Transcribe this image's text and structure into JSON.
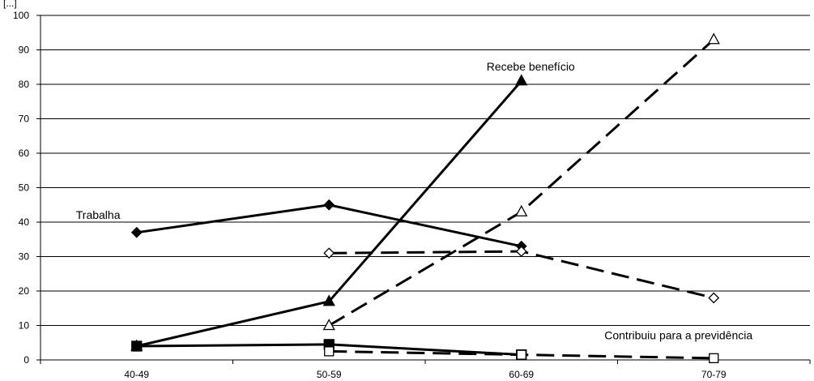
{
  "chart_data": {
    "type": "line",
    "title": "",
    "ylabel": "[...]",
    "xlabel": "",
    "categories": [
      "40-49",
      "50-59",
      "60-69",
      "70-79"
    ],
    "ylim": [
      0,
      100
    ],
    "yticks": [
      0,
      10,
      20,
      30,
      40,
      50,
      60,
      70,
      80,
      90,
      100
    ],
    "grid": "horizontal",
    "legend": "none",
    "series": [
      {
        "key": "trab_solid",
        "values": [
          37,
          45,
          33,
          null
        ],
        "style": "solid",
        "marker": "diamond-filled",
        "color": "#000000"
      },
      {
        "key": "trab_dash",
        "values": [
          null,
          31,
          31.5,
          18
        ],
        "style": "dashed",
        "marker": "diamond-open",
        "color": "#000000"
      },
      {
        "key": "benef_solid",
        "values": [
          4,
          17,
          81,
          null
        ],
        "style": "solid",
        "marker": "triangle-filled",
        "color": "#000000"
      },
      {
        "key": "benef_dash",
        "values": [
          null,
          10,
          43,
          93
        ],
        "style": "dashed",
        "marker": "triangle-open",
        "color": "#000000"
      },
      {
        "key": "contrib_solid",
        "values": [
          4,
          4.5,
          1.5,
          null
        ],
        "style": "solid",
        "marker": "square-filled",
        "color": "#000000"
      },
      {
        "key": "contrib_dash",
        "values": [
          null,
          2.5,
          1.5,
          0.5
        ],
        "style": "dashed",
        "marker": "square-open",
        "color": "#000000"
      }
    ],
    "annotations": [
      {
        "text": "Trabalha",
        "x": "40-49",
        "y": 41
      },
      {
        "text": "Recebe benefício",
        "x": "60-69",
        "y": 84
      },
      {
        "text": "Contribuiu para a previdência",
        "x": "70-79",
        "y": 6
      }
    ]
  }
}
